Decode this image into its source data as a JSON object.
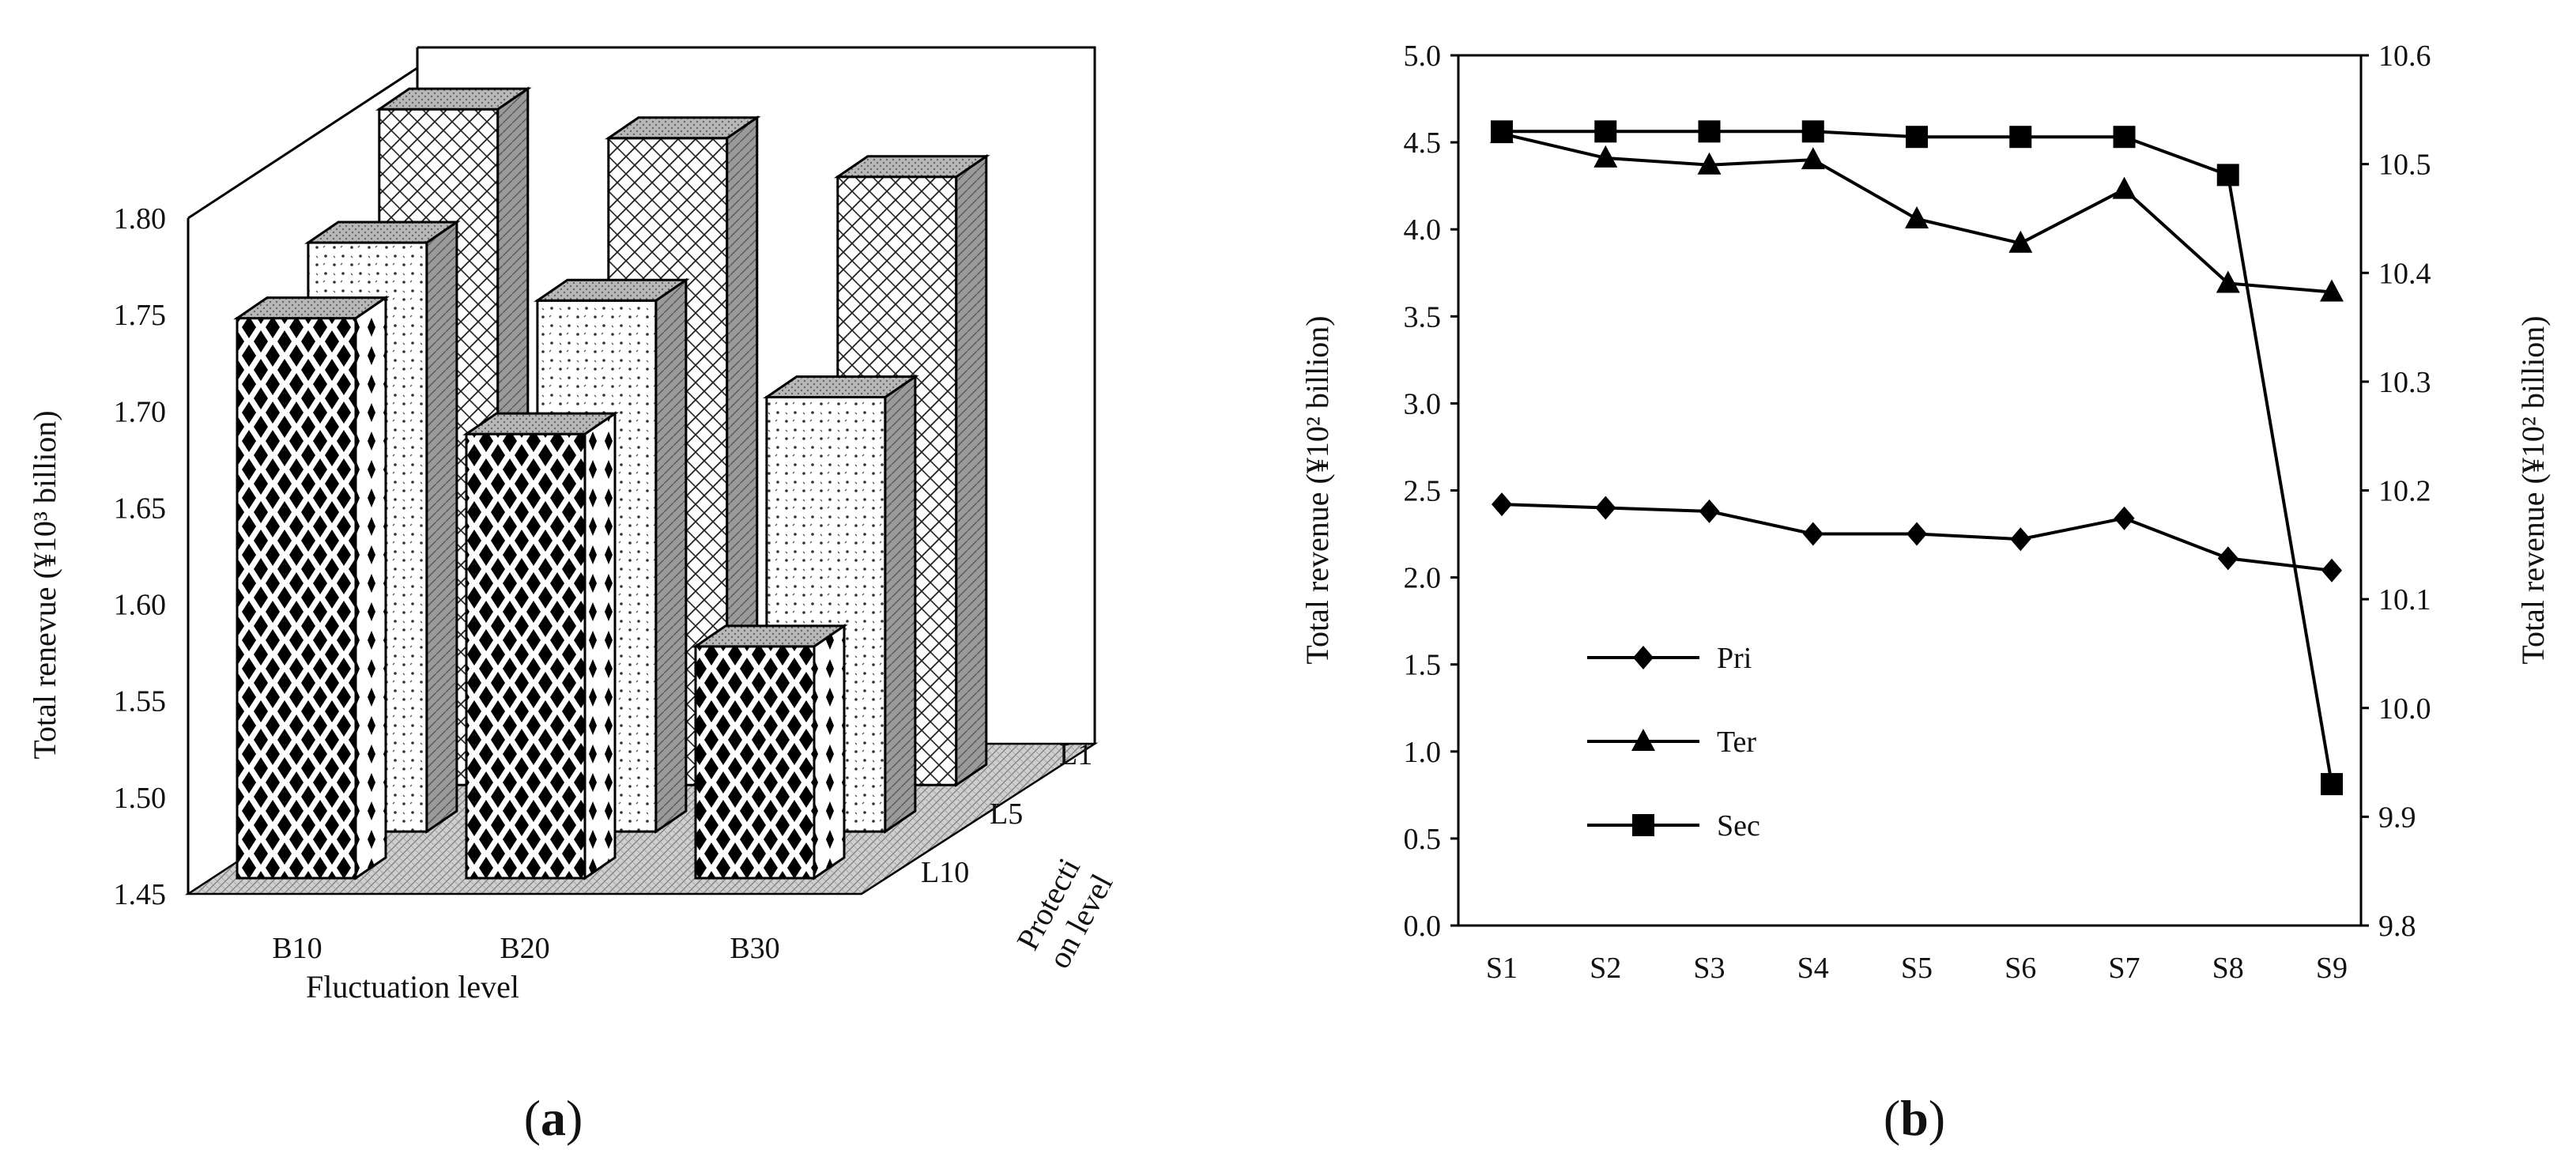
{
  "chart_data": [
    {
      "type": "bar",
      "subtype": "3d-grouped-bar",
      "panel_label": "a",
      "title": "",
      "xlabel": "Fluctuation level",
      "ylabel": "Total renevue (¥10³ billion)",
      "zlabel_lines": [
        "Protecti",
        "on level"
      ],
      "categories": [
        "B10",
        "B20",
        "B30"
      ],
      "series": [
        {
          "name": "L10",
          "pattern": "black-diamond",
          "values": [
            1.74,
            1.68,
            1.57
          ]
        },
        {
          "name": "L5",
          "pattern": "dotted",
          "values": [
            1.755,
            1.725,
            1.675
          ]
        },
        {
          "name": "L1",
          "pattern": "crosshatch",
          "values": [
            1.8,
            1.785,
            1.765
          ]
        }
      ],
      "ylim": [
        1.45,
        1.8
      ],
      "yticks": [
        "1.45",
        "1.50",
        "1.55",
        "1.60",
        "1.65",
        "1.70",
        "1.75",
        "1.80"
      ],
      "depth_labels": [
        "L10",
        "L5",
        "L1"
      ]
    },
    {
      "type": "line",
      "panel_label": "b",
      "title": "",
      "xlabel": "",
      "ylabel_left": "Total revenue (¥10² billion)",
      "ylabel_right": "Total revenue (¥10² billion)",
      "categories": [
        "S1",
        "S2",
        "S3",
        "S4",
        "S5",
        "S6",
        "S7",
        "S8",
        "S9"
      ],
      "series": [
        {
          "name": "Pri",
          "marker": "diamond",
          "axis": "left",
          "values": [
            2.42,
            2.4,
            2.38,
            2.25,
            2.25,
            2.22,
            2.34,
            2.11,
            2.04
          ]
        },
        {
          "name": "Ter",
          "marker": "triangle",
          "axis": "left",
          "values": [
            4.55,
            4.41,
            4.37,
            4.4,
            4.06,
            3.92,
            4.23,
            3.69,
            3.64
          ]
        },
        {
          "name": "Sec",
          "marker": "square",
          "axis": "right",
          "values": [
            10.53,
            10.53,
            10.53,
            10.53,
            10.525,
            10.525,
            10.525,
            10.49,
            9.93
          ]
        }
      ],
      "ylim_left": [
        0.0,
        5.0
      ],
      "yticks_left": [
        "0.0",
        "0.5",
        "1.0",
        "1.5",
        "2.0",
        "2.5",
        "3.0",
        "3.5",
        "4.0",
        "4.5",
        "5.0"
      ],
      "ylim_right": [
        9.8,
        10.6
      ],
      "yticks_right": [
        "9.8",
        "9.9",
        "10.0",
        "10.1",
        "10.2",
        "10.3",
        "10.4",
        "10.5",
        "10.6"
      ],
      "legend_order": [
        "Pri",
        "Ter",
        "Sec"
      ],
      "legend_position": "lower-left"
    }
  ]
}
